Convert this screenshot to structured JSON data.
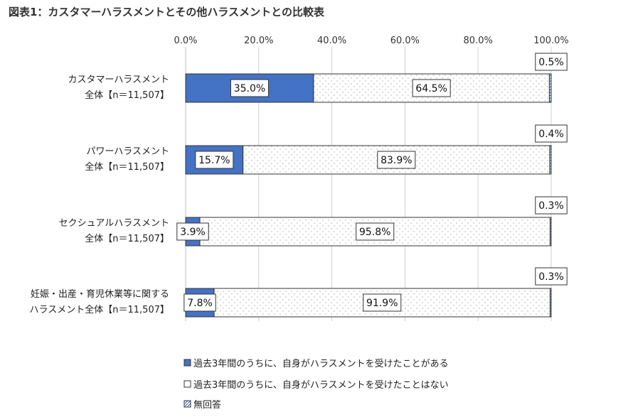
{
  "chart_data": {
    "type": "bar",
    "orientation": "horizontal",
    "stacked": true,
    "title": "図表1：カスタマーハラスメントとその他ハラスメントとの比較表",
    "x_ticks": [
      "0.0%",
      "20.0%",
      "40.0%",
      "60.0%",
      "80.0%",
      "100.0%"
    ],
    "xlim": [
      0,
      100
    ],
    "grid": "vertical lines",
    "legend_position": "bottom",
    "categories": [
      [
        "カスタマーハラスメント",
        "全体【n＝11,507】"
      ],
      [
        "パワーハラスメント",
        "全体【n＝11,507】"
      ],
      [
        "セクシュアルハラスメント",
        "全体【n＝11,507】"
      ],
      [
        "妊娠・出産・育児休業等に関する",
        "ハラスメント全体【n＝11,507】"
      ]
    ],
    "series": [
      {
        "name": "過去3年間のうちに、自身がハラスメントを受けたことがある",
        "color": "#4472C4",
        "pattern": "solid",
        "values": [
          35.0,
          15.7,
          3.9,
          7.8
        ],
        "labels": [
          "35.0%",
          "15.7%",
          "3.9%",
          "7.8%"
        ]
      },
      {
        "name": "過去3年間のうちに、自身がハラスメントを受けたことはない",
        "color": "#ffffff",
        "pattern": "dots",
        "values": [
          64.5,
          83.9,
          95.8,
          91.9
        ],
        "labels": [
          "64.5%",
          "83.9%",
          "95.8%",
          "91.9%"
        ]
      },
      {
        "name": "無回答",
        "color": "#4472C4",
        "pattern": "hatch",
        "values": [
          0.5,
          0.4,
          0.3,
          0.3
        ],
        "labels": [
          "0.5%",
          "0.4%",
          "0.3%",
          "0.3%"
        ]
      }
    ]
  }
}
